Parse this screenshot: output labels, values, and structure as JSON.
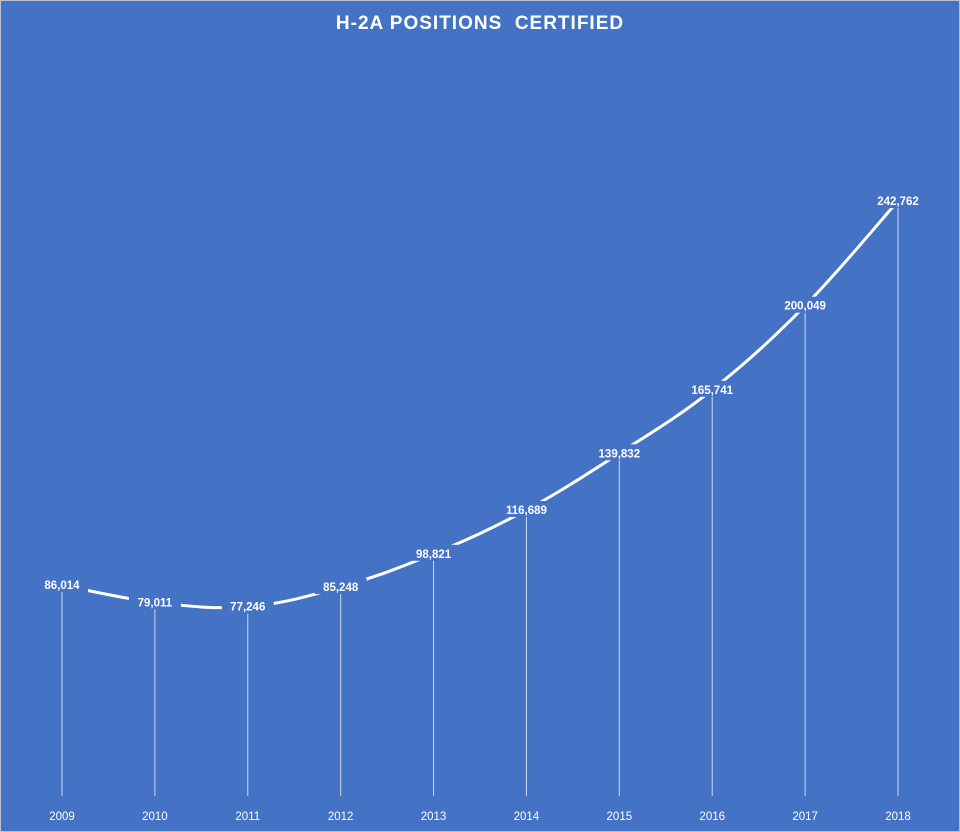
{
  "chart_data": {
    "type": "line",
    "title": "H-2A POSITIONS  CERTIFIED",
    "xlabel": "",
    "ylabel": "",
    "categories": [
      "2009",
      "2010",
      "2011",
      "2012",
      "2013",
      "2014",
      "2015",
      "2016",
      "2017",
      "2018"
    ],
    "series": [
      {
        "values": [
          86014,
          79011,
          77246,
          85248,
          98821,
          116689,
          139832,
          165741,
          200049,
          242762
        ]
      }
    ],
    "data_labels": [
      "86,014",
      "79,011",
      "77,246",
      "85,248",
      "98,821",
      "116,689",
      "139,832",
      "165,741",
      "200,049",
      "242,762"
    ],
    "grid": false,
    "legend": "none",
    "drop_lines": true,
    "colors": {
      "background": "#4472c4",
      "line": "#ffffff",
      "text": "#ffffff"
    }
  }
}
